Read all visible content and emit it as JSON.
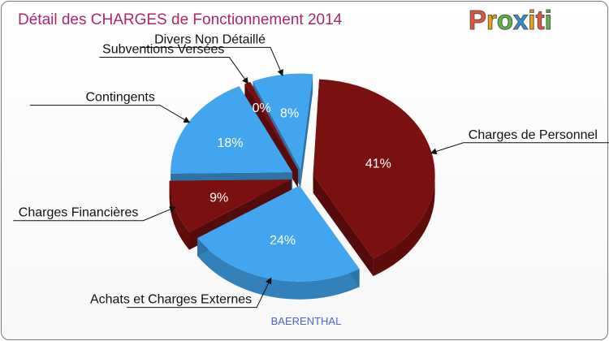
{
  "header": {
    "title": "Détail des CHARGES de Fonctionnement 2014"
  },
  "logo": {
    "letters": [
      "P",
      "r",
      "o",
      "x",
      "i",
      "t",
      "i"
    ],
    "colors": [
      "#e6533a",
      "#f2a200",
      "#59b83d",
      "#2e8fd8",
      "#f2a200",
      "#e6533a",
      "#59b83d"
    ]
  },
  "footer": {
    "commune": "BAERENTHAL"
  },
  "colors": {
    "dark_red": "#7a1010",
    "blue": "#42a5ef",
    "title": "#b0246e",
    "commune": "#4e63d6"
  },
  "chart_data": {
    "type": "pie",
    "title": "Détail des CHARGES de Fonctionnement 2014",
    "slices": [
      {
        "name": "Charges de Personnel",
        "value": 41,
        "label": "41%",
        "color": "#7a1010"
      },
      {
        "name": "Achats et Charges Externes",
        "value": 24,
        "label": "24%",
        "color": "#42a5ef"
      },
      {
        "name": "Charges Financières",
        "value": 9,
        "label": "9%",
        "color": "#7a1010"
      },
      {
        "name": "Contingents",
        "value": 18,
        "label": "18%",
        "color": "#42a5ef"
      },
      {
        "name": "Subventions Versées",
        "value": 0,
        "label": "0%",
        "color": "#7a1010"
      },
      {
        "name": "Divers Non Détaillé",
        "value": 8,
        "label": "8%",
        "color": "#42a5ef"
      }
    ]
  }
}
